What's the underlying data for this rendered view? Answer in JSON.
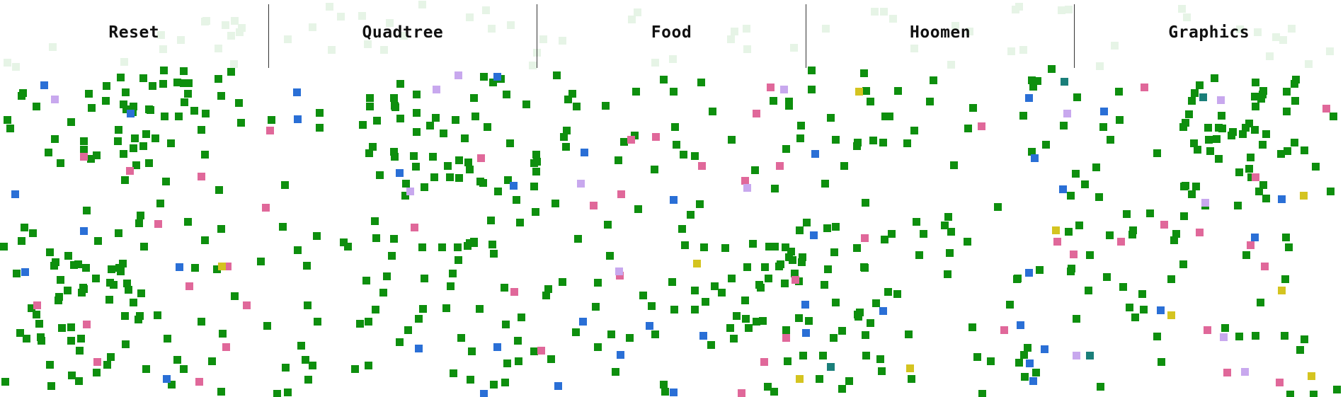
{
  "menu": {
    "buttons": [
      {
        "id": "reset",
        "label": "Reset"
      },
      {
        "id": "quadtree",
        "label": "Quadtree"
      },
      {
        "id": "food",
        "label": "Food"
      },
      {
        "id": "hoomen",
        "label": "Hoomen"
      },
      {
        "id": "graphics",
        "label": "Graphics"
      }
    ]
  },
  "colors": {
    "background": "#ffffff",
    "faded_cell": "#e6f4e6",
    "food": "#0e8f0e",
    "pink_agent": "#e0689a",
    "blue_agent": "#2a6fd6",
    "yellow_agent": "#d4c420",
    "lavender_agent": "#c8a8ee",
    "teal_agent": "#1a7f7a"
  },
  "entity_types": [
    "food",
    "pink_agent",
    "blue_agent",
    "yellow_agent",
    "lavender_agent",
    "teal_agent"
  ]
}
